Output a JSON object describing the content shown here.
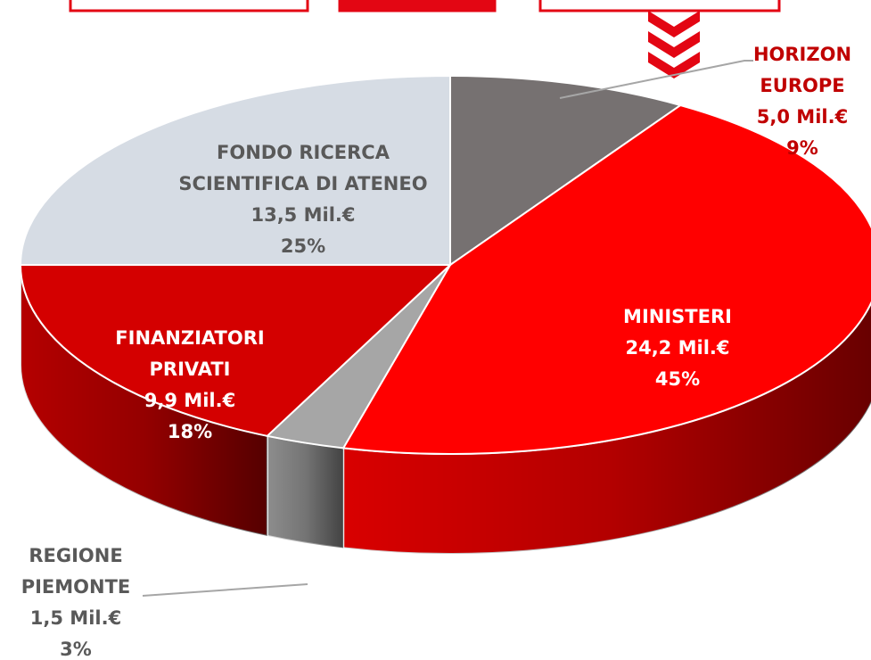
{
  "chart_data": {
    "type": "pie",
    "categories": [
      "HORIZON EUROPE",
      "MINISTERI",
      "REGIONE PIEMONTE",
      "FINANZIATORI PRIVATI",
      "FONDO RICERCA SCIENTIFICA DI ATENEO"
    ],
    "values": [
      9,
      45,
      3,
      18,
      25
    ],
    "value_labels": [
      "9%",
      "45%",
      "3%",
      "18%",
      "25%"
    ],
    "amounts": [
      5.0,
      24.2,
      1.5,
      9.9,
      13.5
    ],
    "amount_labels": [
      "5,0 Mil.€",
      "24,2 Mil.€",
      "1,5 Mil.€",
      "9,9 Mil.€",
      "13,5 Mil.€"
    ],
    "colors": [
      "#767171",
      "#ff0000",
      "#a6a6a6",
      "#d40000",
      "#d6dce4"
    ]
  }
}
